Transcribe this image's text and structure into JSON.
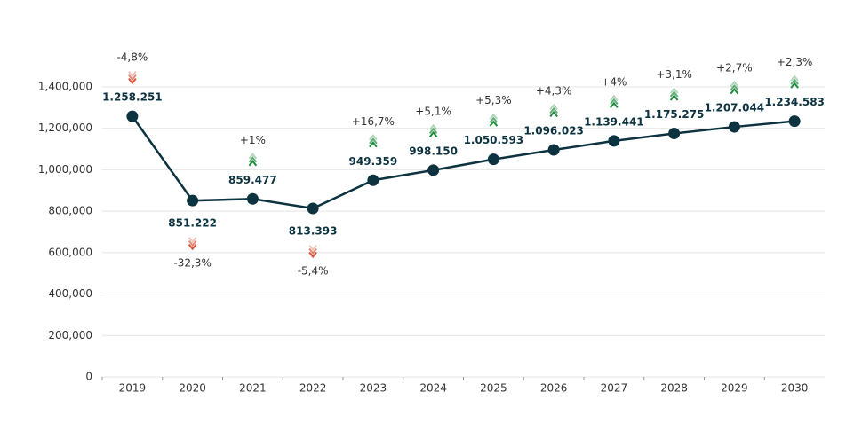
{
  "chart_data": {
    "type": "line",
    "categories": [
      "2019",
      "2020",
      "2021",
      "2022",
      "2023",
      "2024",
      "2025",
      "2026",
      "2027",
      "2028",
      "2029",
      "2030"
    ],
    "values": [
      1258251,
      851222,
      859477,
      813393,
      949359,
      998150,
      1050593,
      1096023,
      1139441,
      1175275,
      1207044,
      1234583
    ],
    "value_labels": [
      "1.258.251",
      "851.222",
      "859.477",
      "813.393",
      "949.359",
      "998.150",
      "1.050.593",
      "1.096.023",
      "1.139.441",
      "1.175.275",
      "1.207.044",
      "1.234.583"
    ],
    "changes": [
      -4.8,
      -32.3,
      1,
      -5.4,
      16.7,
      5.1,
      5.3,
      4.3,
      4,
      3.1,
      2.7,
      2.3
    ],
    "change_labels": [
      "-4,8%",
      "-32,3%",
      "+1%",
      "-5,4%",
      "+16,7%",
      "+5,1%",
      "+5,3%",
      "+4,3%",
      "+4%",
      "+3,1%",
      "+2,7%",
      "+2,3%"
    ],
    "color": "#0d3340",
    "up_color": "#1e8a3c",
    "down_color": "#d9543a",
    "ylim": [
      0,
      1400000
    ],
    "yticks": [
      0,
      {
        "value": 200000,
        "label": "200,000"
      },
      {
        "value": 400000,
        "label": "400,000"
      },
      {
        "value": 600000,
        "label": "600,000"
      },
      {
        "value": 800000,
        "label": "800,000"
      },
      {
        "value": 1000000,
        "label": "1,000,000"
      },
      {
        "value": 1200000,
        "label": "1,200,000"
      },
      {
        "value": 1400000,
        "label": "1,400,000"
      }
    ],
    "grid": true
  }
}
